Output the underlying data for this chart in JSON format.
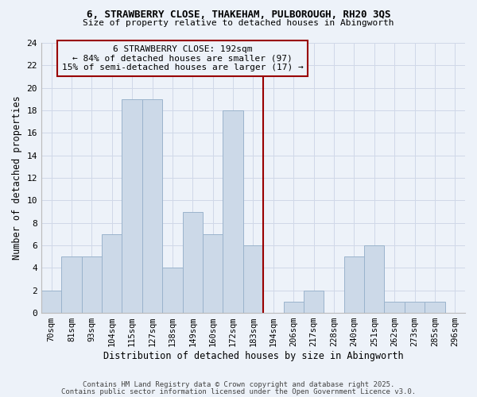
{
  "title1": "6, STRAWBERRY CLOSE, THAKEHAM, PULBOROUGH, RH20 3QS",
  "title2": "Size of property relative to detached houses in Abingworth",
  "xlabel": "Distribution of detached houses by size in Abingworth",
  "ylabel": "Number of detached properties",
  "categories": [
    "70sqm",
    "81sqm",
    "93sqm",
    "104sqm",
    "115sqm",
    "127sqm",
    "138sqm",
    "149sqm",
    "160sqm",
    "172sqm",
    "183sqm",
    "194sqm",
    "206sqm",
    "217sqm",
    "228sqm",
    "240sqm",
    "251sqm",
    "262sqm",
    "273sqm",
    "285sqm",
    "296sqm"
  ],
  "values": [
    2,
    5,
    5,
    7,
    19,
    19,
    4,
    9,
    7,
    18,
    6,
    0,
    1,
    2,
    0,
    5,
    6,
    1,
    1,
    1,
    0
  ],
  "bar_color": "#ccd9e8",
  "bar_edge_color": "#9ab3cc",
  "ref_line_x": 10.5,
  "ref_line_color": "#990000",
  "annotation_line1": "6 STRAWBERRY CLOSE: 192sqm",
  "annotation_line2": "← 84% of detached houses are smaller (97)",
  "annotation_line3": "15% of semi-detached houses are larger (17) →",
  "ylim": [
    0,
    24
  ],
  "yticks": [
    0,
    2,
    4,
    6,
    8,
    10,
    12,
    14,
    16,
    18,
    20,
    22,
    24
  ],
  "footer1": "Contains HM Land Registry data © Crown copyright and database right 2025.",
  "footer2": "Contains public sector information licensed under the Open Government Licence v3.0.",
  "bg_color": "#edf2f9",
  "grid_color": "#d0d8e8"
}
